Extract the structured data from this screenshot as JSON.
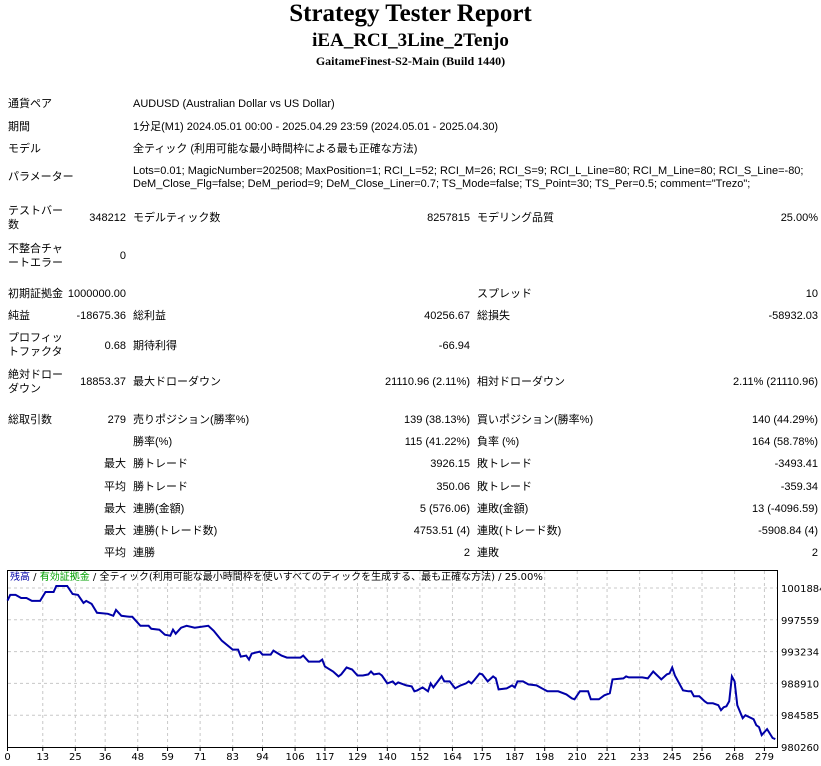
{
  "header": {
    "title": "Strategy Tester Report",
    "ea_name": "iEA_RCI_3Line_2Tenjo",
    "server": "GaitameFinest-S2-Main (Build 1440)"
  },
  "info": {
    "symbol_label": "通貨ペア",
    "symbol": "AUDUSD (Australian Dollar vs US Dollar)",
    "period_label": "期間",
    "period": "1分足(M1) 2024.05.01 00:00 - 2025.04.29 23:59 (2024.05.01 - 2025.04.30)",
    "model_label": "モデル",
    "model": "全ティック (利用可能な最小時間枠による最も正確な方法)",
    "params_label": "パラメーター",
    "params_line1": "Lots=0.01; MagicNumber=202508; MaxPosition=1; RCI_L=52; RCI_M=26; RCI_S=9; RCI_L_Line=80; RCI_M_Line=80; RCI_S_Line=-80;",
    "params_line2": "DeM_Close_Flg=false; DeM_period=9; DeM_Close_Liner=0.7; TS_Mode=false; TS_Point=30; TS_Per=0.5; comment=\"Trezo\";"
  },
  "stats": {
    "bars_label_1": "テストバー",
    "bars_label_2": "数",
    "bars": "348212",
    "ticks_label": "モデルティック数",
    "ticks": "8257815",
    "quality_label": "モデリング品質",
    "quality": "25.00%",
    "mismatch_label_1": "不整合チャ",
    "mismatch_label_2": "ートエラー",
    "mismatch": "0",
    "deposit_label": "初期証拠金",
    "deposit": "1000000.00",
    "spread_label": "スプレッド",
    "spread": "10",
    "net_label": "純益",
    "net": "-18675.36",
    "gross_profit_label": "総利益",
    "gross_profit": "40256.67",
    "gross_loss_label": "総損失",
    "gross_loss": "-58932.03",
    "pf_label_1": "プロフィッ",
    "pf_label_2": "トファクタ",
    "pf": "0.68",
    "expected_label": "期待利得",
    "expected": "-66.94",
    "abs_dd_label_1": "絶対ドロー",
    "abs_dd_label_2": "ダウン",
    "abs_dd": "18853.37",
    "max_dd_label": "最大ドローダウン",
    "max_dd": "21110.96 (2.11%)",
    "rel_dd_label": "相対ドローダウン",
    "rel_dd": "2.11% (21110.96)",
    "trades_label": "総取引数",
    "trades": "279",
    "short_label": "売りポジション(勝率%)",
    "short": "139 (38.13%)",
    "long_label": "買いポジション(勝率%)",
    "long": "140 (44.29%)",
    "rows": [
      {
        "a": "",
        "b": "勝率(%)",
        "c": "115 (41.22%)",
        "d": "負率 (%)",
        "e": "164 (58.78%)"
      },
      {
        "a": "最大",
        "b": "勝トレード",
        "c": "3926.15",
        "d": "敗トレード",
        "e": "-3493.41"
      },
      {
        "a": "平均",
        "b": "勝トレード",
        "c": "350.06",
        "d": "敗トレード",
        "e": "-359.34"
      },
      {
        "a": "最大",
        "b": "連勝(金額)",
        "c": "5 (576.06)",
        "d": "連敗(金額)",
        "e": "13 (-4096.59)"
      },
      {
        "a": "最大",
        "b": "連勝(トレード数)",
        "c": "4753.51 (4)",
        "d": "連敗(トレード数)",
        "e": "-5908.84 (4)"
      },
      {
        "a": "平均",
        "b": "連勝",
        "c": "2",
        "d": "連敗",
        "e": "2"
      }
    ]
  },
  "chart_data": {
    "type": "line",
    "legend": {
      "balance": "残高",
      "sep1": " / ",
      "equity": "有効証拠金",
      "sep2": " / ",
      "model": "全ティック(利用可能な最小時間枠を使いすべてのティックを生成する、最も正確な方法)",
      "sep3": " / ",
      "quality": "25.00%"
    },
    "colors": {
      "balance": "#0000a8",
      "equity": "#00a000"
    },
    "xticks": [
      "0",
      "13",
      "25",
      "36",
      "48",
      "59",
      "71",
      "83",
      "94",
      "106",
      "117",
      "129",
      "140",
      "152",
      "164",
      "175",
      "187",
      "198",
      "210",
      "221",
      "233",
      "245",
      "256",
      "268",
      "279"
    ],
    "yticks": [
      "1001884",
      "997559",
      "993234",
      "988910",
      "984585",
      "980260"
    ],
    "ylim": [
      980260,
      1001884
    ],
    "grid": true,
    "series": [
      [
        0,
        1000170
      ],
      [
        1,
        1000940
      ],
      [
        3,
        1000940
      ],
      [
        5,
        1000530
      ],
      [
        7,
        1000530
      ],
      [
        9,
        1000130
      ],
      [
        12,
        1000130
      ],
      [
        14,
        1001340
      ],
      [
        15,
        1001340
      ],
      [
        17,
        1001340
      ],
      [
        18,
        1002150
      ],
      [
        22,
        1002150
      ],
      [
        24,
        1001070
      ],
      [
        26,
        1000940
      ],
      [
        28,
        999860
      ],
      [
        29,
        1000130
      ],
      [
        31,
        999720
      ],
      [
        33,
        998510
      ],
      [
        37,
        998370
      ],
      [
        39,
        998100
      ],
      [
        40,
        998910
      ],
      [
        42,
        998100
      ],
      [
        45,
        997970
      ],
      [
        46,
        997970
      ],
      [
        49,
        996750
      ],
      [
        52,
        996750
      ],
      [
        53,
        996340
      ],
      [
        56,
        996210
      ],
      [
        58,
        995530
      ],
      [
        60,
        995400
      ],
      [
        61,
        996210
      ],
      [
        62,
        995670
      ],
      [
        64,
        996480
      ],
      [
        66,
        996750
      ],
      [
        69,
        996480
      ],
      [
        74,
        996750
      ],
      [
        76,
        996070
      ],
      [
        79,
        994720
      ],
      [
        83,
        993510
      ],
      [
        85,
        993510
      ],
      [
        86,
        992560
      ],
      [
        88,
        992690
      ],
      [
        89,
        992150
      ],
      [
        90,
        992960
      ],
      [
        93,
        993230
      ],
      [
        94,
        992830
      ],
      [
        97,
        992830
      ],
      [
        98,
        993370
      ],
      [
        101,
        992690
      ],
      [
        103,
        992420
      ],
      [
        108,
        992420
      ],
      [
        109,
        992690
      ],
      [
        111,
        991880
      ],
      [
        115,
        991880
      ],
      [
        116,
        992150
      ],
      [
        117,
        991210
      ],
      [
        120,
        990530
      ],
      [
        122,
        989860
      ],
      [
        123,
        990130
      ],
      [
        125,
        991070
      ],
      [
        127,
        990800
      ],
      [
        129,
        989990
      ],
      [
        131,
        989990
      ],
      [
        133,
        990130
      ],
      [
        134,
        990530
      ],
      [
        135,
        990130
      ],
      [
        137,
        990260
      ],
      [
        138,
        989990
      ],
      [
        140,
        988910
      ],
      [
        142,
        989180
      ],
      [
        143,
        988780
      ],
      [
        144,
        989050
      ],
      [
        147,
        988640
      ],
      [
        149,
        988500
      ],
      [
        150,
        987830
      ],
      [
        151,
        987960
      ],
      [
        153,
        988370
      ],
      [
        155,
        987830
      ],
      [
        156,
        988910
      ],
      [
        157,
        988370
      ],
      [
        160,
        989860
      ],
      [
        161,
        989180
      ],
      [
        163,
        989180
      ],
      [
        165,
        988230
      ],
      [
        167,
        988640
      ],
      [
        169,
        988910
      ],
      [
        170,
        989180
      ],
      [
        171,
        988910
      ],
      [
        172,
        989320
      ],
      [
        174,
        990260
      ],
      [
        175,
        990130
      ],
      [
        177,
        989180
      ],
      [
        179,
        989860
      ],
      [
        180,
        989590
      ],
      [
        181,
        988100
      ],
      [
        184,
        988230
      ],
      [
        186,
        988640
      ],
      [
        187,
        988370
      ],
      [
        188,
        989180
      ],
      [
        190,
        989180
      ],
      [
        192,
        988780
      ],
      [
        195,
        988640
      ],
      [
        197,
        988230
      ],
      [
        199,
        987830
      ],
      [
        203,
        987830
      ],
      [
        206,
        987420
      ],
      [
        208,
        986880
      ],
      [
        209,
        986750
      ],
      [
        211,
        987830
      ],
      [
        214,
        987830
      ],
      [
        215,
        986750
      ],
      [
        218,
        986750
      ],
      [
        220,
        987290
      ],
      [
        222,
        987560
      ],
      [
        223,
        989450
      ],
      [
        227,
        989590
      ],
      [
        228,
        989860
      ],
      [
        229,
        989720
      ],
      [
        234,
        989720
      ],
      [
        236,
        989590
      ],
      [
        238,
        990530
      ],
      [
        241,
        989450
      ],
      [
        243,
        990130
      ],
      [
        244,
        990260
      ],
      [
        245,
        991070
      ],
      [
        246,
        989990
      ],
      [
        249,
        987960
      ],
      [
        251,
        987830
      ],
      [
        252,
        987830
      ],
      [
        253,
        987150
      ],
      [
        255,
        987150
      ],
      [
        257,
        986480
      ],
      [
        258,
        986210
      ],
      [
        260,
        986210
      ],
      [
        262,
        985940
      ],
      [
        263,
        985260
      ],
      [
        264,
        985670
      ],
      [
        265,
        985800
      ],
      [
        266,
        986480
      ],
      [
        267,
        989860
      ],
      [
        268,
        989180
      ],
      [
        269,
        985940
      ],
      [
        271,
        984180
      ],
      [
        272,
        984590
      ],
      [
        275,
        984040
      ],
      [
        276,
        983230
      ],
      [
        277,
        982960
      ],
      [
        278,
        981880
      ],
      [
        280,
        982690
      ],
      [
        282,
        981480
      ],
      [
        283,
        981340
      ]
    ]
  }
}
